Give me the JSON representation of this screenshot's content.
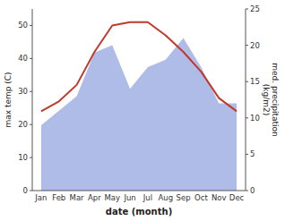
{
  "chart_data": {
    "type": "line",
    "xlabel": "date (month)",
    "ylabel": "max temp (C)",
    "y2label": "med. precipitation\n(kg/m2)",
    "categories": [
      "Jan",
      "Feb",
      "Mar",
      "Apr",
      "May",
      "Jun",
      "Jul",
      "Aug",
      "Sep",
      "Oct",
      "Nov",
      "Dec"
    ],
    "series": [
      {
        "type": "area",
        "axis": "y2",
        "color": "#b0bce8",
        "values": [
          9,
          11,
          13,
          19,
          20,
          14,
          17,
          18,
          21,
          17,
          12,
          12
        ]
      },
      {
        "type": "line",
        "color": "#c0392b",
        "values": [
          24,
          27,
          32,
          42,
          50,
          51,
          51,
          47,
          42,
          36,
          28,
          24
        ]
      }
    ],
    "ylim": [
      0,
      55
    ],
    "yticks": [
      0,
      10,
      20,
      30,
      40,
      50
    ],
    "y2lim": [
      0,
      25
    ],
    "y2ticks": [
      0,
      5,
      10,
      15,
      20,
      25
    ],
    "grid": false
  }
}
